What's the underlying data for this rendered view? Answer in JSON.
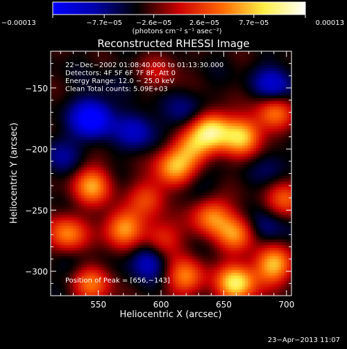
{
  "chart_data": {
    "type": "heatmap",
    "title": "Reconstructed RHESSI Image",
    "xlabel": "Heliocentric X (arcsec)",
    "ylabel": "Heliocentric Y (arcsec)",
    "xlim": [
      512,
      704
    ],
    "ylim": [
      -320,
      -120
    ],
    "x_ticks": [
      550,
      600,
      650,
      700
    ],
    "x_tick_labels": [
      "550",
      "600",
      "650",
      "700"
    ],
    "y_ticks": [
      -150,
      -200,
      -250,
      -300
    ],
    "y_tick_labels": [
      "−150",
      "−200",
      "−250",
      "−300"
    ],
    "colorbar": {
      "range": [
        -0.00013,
        0.00013
      ],
      "tick_values": [
        -0.00013,
        -7.7e-05,
        -2.6e-05,
        2.6e-05,
        7.7e-05,
        0.00013
      ],
      "tick_labels": [
        "−0.00013",
        "−7.7e−05",
        "−2.6e−05",
        "2.6e−05",
        "7.7e−05",
        "0.00013"
      ],
      "unit": "(photons cm⁻² s⁻¹ asec⁻²)",
      "colors": [
        "#0000ff",
        "#0000aa",
        "#000000",
        "#cc0000",
        "#ff6600",
        "#ffee44",
        "#ffffff"
      ]
    },
    "annotations": [
      "22−Dec−2002 01:08:40.000 to 01:13:30.000",
      "Detectors: 4F 5F 6F 7F 8F, Att 0",
      "Energy Range: 12.0 − 25.0 keV",
      "Clean     Total counts: 5.09E+03"
    ],
    "peak_label": "Position of Peak = [656,−143]",
    "peak_position": [
      656,
      -143
    ],
    "sources": [
      {
        "x": 640,
        "y": -185,
        "value": 0.00012
      },
      {
        "x": 665,
        "y": -190,
        "value": 0.0001
      },
      {
        "x": 610,
        "y": -215,
        "value": 8.5e-05
      },
      {
        "x": 625,
        "y": -200,
        "value": 7e-05
      },
      {
        "x": 690,
        "y": -170,
        "value": 7e-05
      },
      {
        "x": 640,
        "y": -255,
        "value": 8e-05
      },
      {
        "x": 660,
        "y": -270,
        "value": 7.5e-05
      },
      {
        "x": 570,
        "y": -265,
        "value": 9e-05
      },
      {
        "x": 600,
        "y": -275,
        "value": 6e-05
      },
      {
        "x": 545,
        "y": -230,
        "value": 8.5e-05
      },
      {
        "x": 525,
        "y": -270,
        "value": 8e-05
      },
      {
        "x": 590,
        "y": -240,
        "value": 5e-05
      },
      {
        "x": 660,
        "y": -310,
        "value": 0.00012
      },
      {
        "x": 620,
        "y": -305,
        "value": 7.5e-05
      },
      {
        "x": 690,
        "y": -295,
        "value": 0.0001
      },
      {
        "x": 545,
        "y": -310,
        "value": 7e-05
      },
      {
        "x": 700,
        "y": -240,
        "value": 6e-05
      },
      {
        "x": 555,
        "y": -145,
        "value": -2e-05
      },
      {
        "x": 600,
        "y": -135,
        "value": 2.5e-05
      },
      {
        "x": 545,
        "y": -175,
        "value": -0.00012
      },
      {
        "x": 580,
        "y": -185,
        "value": -7e-05
      },
      {
        "x": 620,
        "y": -170,
        "value": -5e-05
      },
      {
        "x": 690,
        "y": -148,
        "value": -8e-05
      },
      {
        "x": 520,
        "y": -205,
        "value": -5e-05
      },
      {
        "x": 590,
        "y": -290,
        "value": -8e-05
      },
      {
        "x": 685,
        "y": -265,
        "value": -5e-05
      },
      {
        "x": 690,
        "y": -215,
        "value": -4e-05
      },
      {
        "x": 630,
        "y": -230,
        "value": -3e-05
      },
      {
        "x": 530,
        "y": -295,
        "value": -3e-05
      }
    ]
  },
  "footer": {
    "timestamp": "23−Apr−2013 11:07"
  }
}
